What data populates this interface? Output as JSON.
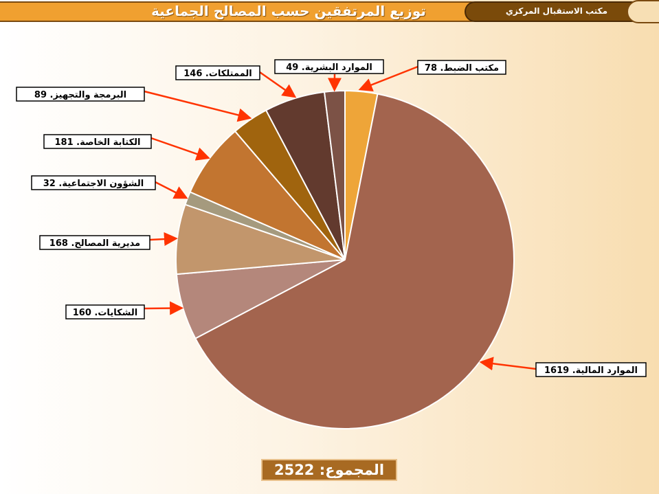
{
  "header": {
    "title": "توزيع المرتفقين حسب المصالح الجماعية",
    "office": "مكتب الاستقبال المركزي"
  },
  "total_label": "المجموع: 2522",
  "chart_data": {
    "type": "pie",
    "slices": [
      {
        "name": "مكتب الضبط",
        "value": 78,
        "label": "مكتب الضبط. 78",
        "color": "#eea539"
      },
      {
        "name": "الموارد المالية",
        "value": 1619,
        "label": "الموارد المالية. 1619",
        "color": "#a3644e"
      },
      {
        "name": "الشكايات",
        "value": 160,
        "label": "الشكايات. 160",
        "color": "#b4877b"
      },
      {
        "name": "مديرية المصالح",
        "value": 168,
        "label": "مديرية المصالح. 168",
        "color": "#c2966c"
      },
      {
        "name": "الشؤون الاجتماعية",
        "value": 32,
        "label": "الشؤون الاجتماعية. 32",
        "color": "#a59a7e"
      },
      {
        "name": "الكتابة الخاصة",
        "value": 181,
        "label": "الكتابة الخاصة. 181",
        "color": "#c27530"
      },
      {
        "name": "البرمجة والتجهيز",
        "value": 89,
        "label": "البرمجة والتجهيز. 89",
        "color": "#a0640e"
      },
      {
        "name": "الممتلكات",
        "value": 146,
        "label": "الممتلكات. 146",
        "color": "#623a2e"
      },
      {
        "name": "الموارد البشرية",
        "value": 49,
        "label": "الموارد البشرية. 49",
        "color": "#7c5246"
      }
    ],
    "leader_color": "#ff3300"
  }
}
